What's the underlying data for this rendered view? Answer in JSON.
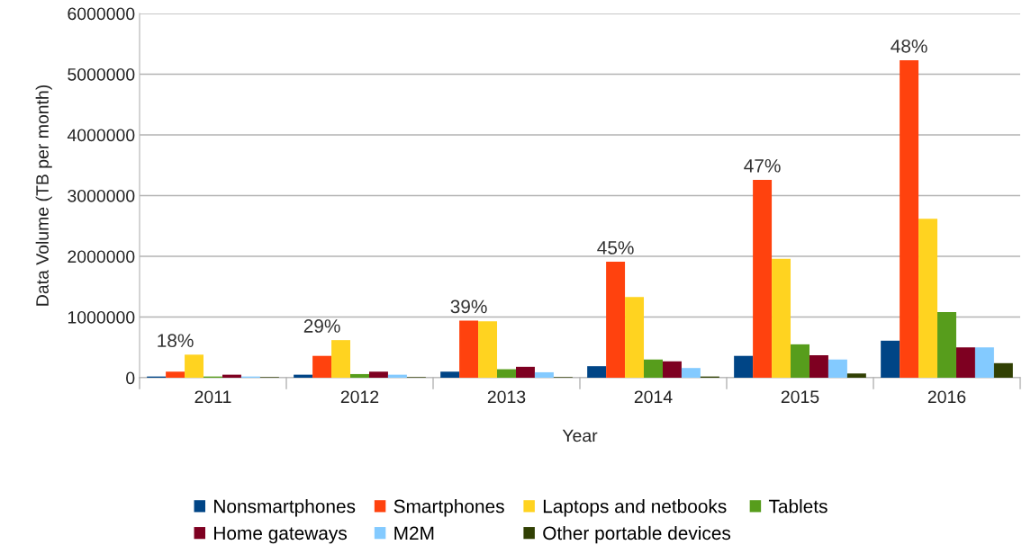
{
  "chart_data": {
    "type": "bar",
    "xlabel": "Year",
    "ylabel": "Data Volume (TB per month)",
    "categories": [
      "2011",
      "2012",
      "2013",
      "2014",
      "2015",
      "2016"
    ],
    "series": [
      {
        "name": "Nonsmartphones",
        "color": "#004586",
        "values": [
          20000,
          50000,
          100000,
          190000,
          360000,
          610000
        ]
      },
      {
        "name": "Smartphones",
        "color": "#ff420e",
        "values": [
          100000,
          360000,
          940000,
          1910000,
          3260000,
          5230000
        ]
      },
      {
        "name": "Laptops and netbooks",
        "color": "#ffd320",
        "values": [
          380000,
          620000,
          930000,
          1330000,
          1960000,
          2620000
        ]
      },
      {
        "name": "Tablets",
        "color": "#579d1c",
        "values": [
          20000,
          60000,
          140000,
          300000,
          550000,
          1080000
        ]
      },
      {
        "name": "Home gateways",
        "color": "#7e0021",
        "values": [
          50000,
          100000,
          180000,
          270000,
          370000,
          500000
        ]
      },
      {
        "name": "M2M",
        "color": "#83caff",
        "values": [
          20000,
          50000,
          90000,
          160000,
          300000,
          500000
        ]
      },
      {
        "name": "Other portable devices",
        "color": "#314004",
        "values": [
          10000,
          10000,
          10000,
          20000,
          70000,
          240000
        ]
      }
    ],
    "annotations": [
      "18%",
      "29%",
      "39%",
      "45%",
      "47%",
      "48%"
    ],
    "ylim": [
      0,
      6000000
    ],
    "yticks": [
      0,
      1000000,
      2000000,
      3000000,
      4000000,
      5000000,
      6000000
    ],
    "grid": "y",
    "legend": "bottom"
  }
}
